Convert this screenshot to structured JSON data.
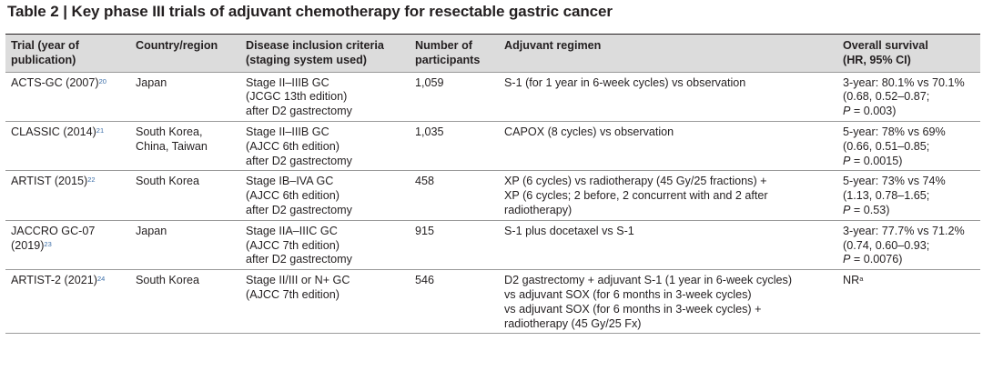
{
  "caption": "Table 2 | Key phase III trials of adjuvant chemotherapy for resectable gastric cancer",
  "columns": [
    [
      "Trial (year of",
      "publication)"
    ],
    [
      "Country/region"
    ],
    [
      "Disease inclusion criteria",
      "(staging system used)"
    ],
    [
      "Number of",
      "participants"
    ],
    [
      "Adjuvant regimen"
    ],
    [
      "Overall survival",
      "(HR, 95% CI)"
    ]
  ],
  "rows": [
    {
      "trial": [
        "ACTS-GC (2007)"
      ],
      "ref": "20",
      "country": [
        "Japan"
      ],
      "criteria": [
        "Stage II–IIIB GC",
        "(JCGC 13th edition)",
        "after D2 gastrectomy"
      ],
      "participants": "1,059",
      "regimen": [
        "S-1 (for 1 year in 6-week cycles) vs observation"
      ],
      "survival": [
        "3-year: 80.1% vs 70.1%",
        "(0.68, 0.52–0.87;"
      ],
      "p_label": "P",
      "p_value": " = 0.003)"
    },
    {
      "trial": [
        "CLASSIC (2014)"
      ],
      "ref": "21",
      "country": [
        "South Korea,",
        "China, Taiwan"
      ],
      "criteria": [
        "Stage II–IIIB GC",
        "(AJCC 6th edition)",
        "after D2 gastrectomy"
      ],
      "participants": "1,035",
      "regimen": [
        "CAPOX (8 cycles) vs observation"
      ],
      "survival": [
        "5-year: 78% vs 69%",
        "(0.66, 0.51–0.85;"
      ],
      "p_label": "P",
      "p_value": " = 0.0015)"
    },
    {
      "trial": [
        "ARTIST (2015)"
      ],
      "ref": "22",
      "country": [
        "South Korea"
      ],
      "criteria": [
        "Stage IB–IVA GC",
        "(AJCC 6th edition)",
        "after D2 gastrectomy"
      ],
      "participants": "458",
      "regimen": [
        "XP (6 cycles) vs radiotherapy (45 Gy/25 fractions) +",
        "XP (6 cycles; 2 before, 2 concurrent with and 2 after",
        "radiotherapy)"
      ],
      "survival": [
        "5-year: 73% vs 74%",
        "(1.13, 0.78–1.65;"
      ],
      "p_label": "P",
      "p_value": " = 0.53)"
    },
    {
      "trial": [
        "JACCRO GC-07",
        "(2019)"
      ],
      "ref": "23",
      "country": [
        "Japan"
      ],
      "criteria": [
        "Stage IIA–IIIC GC",
        "(AJCC 7th edition)",
        "after D2 gastrectomy"
      ],
      "participants": "915",
      "regimen": [
        "S-1 plus docetaxel vs S-1"
      ],
      "survival": [
        "3-year: 77.7% vs 71.2%",
        "(0.74, 0.60–0.93;"
      ],
      "p_label": "P",
      "p_value": " = 0.0076)"
    },
    {
      "trial": [
        "ARTIST-2 (2021)"
      ],
      "ref": "24",
      "country": [
        "South Korea"
      ],
      "criteria": [
        "Stage II/III or N+ GC",
        "(AJCC 7th edition)"
      ],
      "participants": "546",
      "regimen": [
        "D2 gastrectomy + adjuvant S-1 (1 year in 6-week cycles)",
        "vs adjuvant SOX (for 6 months in 3-week cycles)",
        "vs adjuvant SOX (for 6 months in 3-week cycles) +",
        "radiotherapy (45 Gy/25 Fx)"
      ],
      "survival": [
        "NR"
      ],
      "survival_sup": "a",
      "p_label": "",
      "p_value": ""
    }
  ]
}
